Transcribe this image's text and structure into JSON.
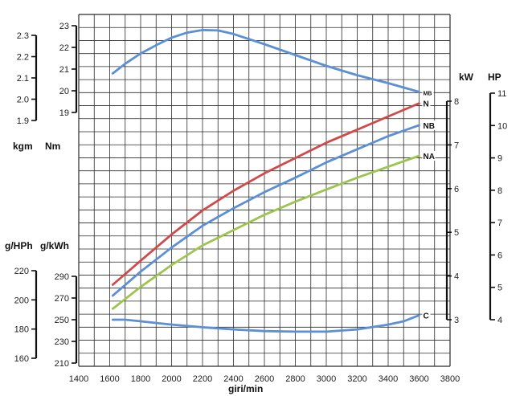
{
  "chart_data": {
    "type": "line",
    "xlabel": "giri/min",
    "x_range": [
      1400,
      3800
    ],
    "x_ticks": [
      1400,
      1600,
      1800,
      2000,
      2200,
      2400,
      2600,
      2800,
      3000,
      3200,
      3400,
      3600,
      3800
    ],
    "grid": true,
    "axes": {
      "torque_nm": {
        "label": "Nm",
        "range": [
          19,
          23
        ],
        "ticks": [
          19,
          20,
          21,
          22,
          23
        ]
      },
      "torque_kgm": {
        "label": "kgm",
        "range": [
          1.9,
          2.3
        ],
        "ticks": [
          1.9,
          2.0,
          2.1,
          2.2,
          2.3
        ]
      },
      "power_kw": {
        "label": "kW",
        "range": [
          3,
          8
        ],
        "ticks": [
          3,
          4,
          5,
          6,
          7,
          8
        ]
      },
      "power_hp": {
        "label": "HP",
        "range": [
          4,
          11
        ],
        "ticks": [
          4,
          5,
          6,
          7,
          8,
          9,
          10,
          11
        ]
      },
      "consumption_gkwh": {
        "label": "g/kWh",
        "range": [
          210,
          290
        ],
        "ticks": [
          210,
          230,
          250,
          270,
          290
        ]
      },
      "consumption_ghph": {
        "label": "g/HPh",
        "range": [
          160,
          220
        ],
        "ticks": [
          160,
          180,
          200,
          220
        ]
      }
    },
    "series": [
      {
        "name": "MB",
        "axis": "torque_nm",
        "color": "#5b8fd6",
        "x": [
          1620,
          1700,
          1800,
          1900,
          2000,
          2100,
          2200,
          2300,
          2400,
          2600,
          2800,
          3000,
          3200,
          3400,
          3600
        ],
        "y": [
          20.8,
          21.25,
          21.72,
          22.1,
          22.45,
          22.68,
          22.8,
          22.78,
          22.62,
          22.15,
          21.65,
          21.15,
          20.72,
          20.35,
          19.95
        ]
      },
      {
        "name": "N",
        "axis": "power_kw",
        "color": "#d04a4a",
        "x": [
          1620,
          1800,
          2000,
          2200,
          2400,
          2600,
          2800,
          3000,
          3200,
          3400,
          3600
        ],
        "y": [
          3.8,
          4.35,
          4.95,
          5.5,
          5.95,
          6.35,
          6.7,
          7.05,
          7.35,
          7.65,
          7.95
        ]
      },
      {
        "name": "NB",
        "axis": "power_kw",
        "color": "#5b8fd6",
        "x": [
          1620,
          1800,
          2000,
          2200,
          2400,
          2600,
          2800,
          3000,
          3200,
          3400,
          3600
        ],
        "y": [
          3.55,
          4.1,
          4.65,
          5.15,
          5.55,
          5.92,
          6.25,
          6.6,
          6.9,
          7.2,
          7.45
        ]
      },
      {
        "name": "NA",
        "axis": "power_kw",
        "color": "#9dc44d",
        "x": [
          1620,
          1800,
          2000,
          2200,
          2400,
          2600,
          2800,
          3000,
          3200,
          3400,
          3600
        ],
        "y": [
          3.25,
          3.75,
          4.25,
          4.7,
          5.05,
          5.4,
          5.7,
          5.98,
          6.25,
          6.5,
          6.75
        ]
      },
      {
        "name": "C",
        "axis": "consumption_gkwh",
        "color": "#5b8fd6",
        "x": [
          1620,
          1700,
          1800,
          2000,
          2200,
          2400,
          2600,
          2800,
          3000,
          3200,
          3400,
          3500,
          3600
        ],
        "y": [
          250,
          250,
          248.5,
          245.5,
          243,
          241,
          239.5,
          239,
          239,
          241,
          245.5,
          248.5,
          254
        ]
      }
    ]
  }
}
